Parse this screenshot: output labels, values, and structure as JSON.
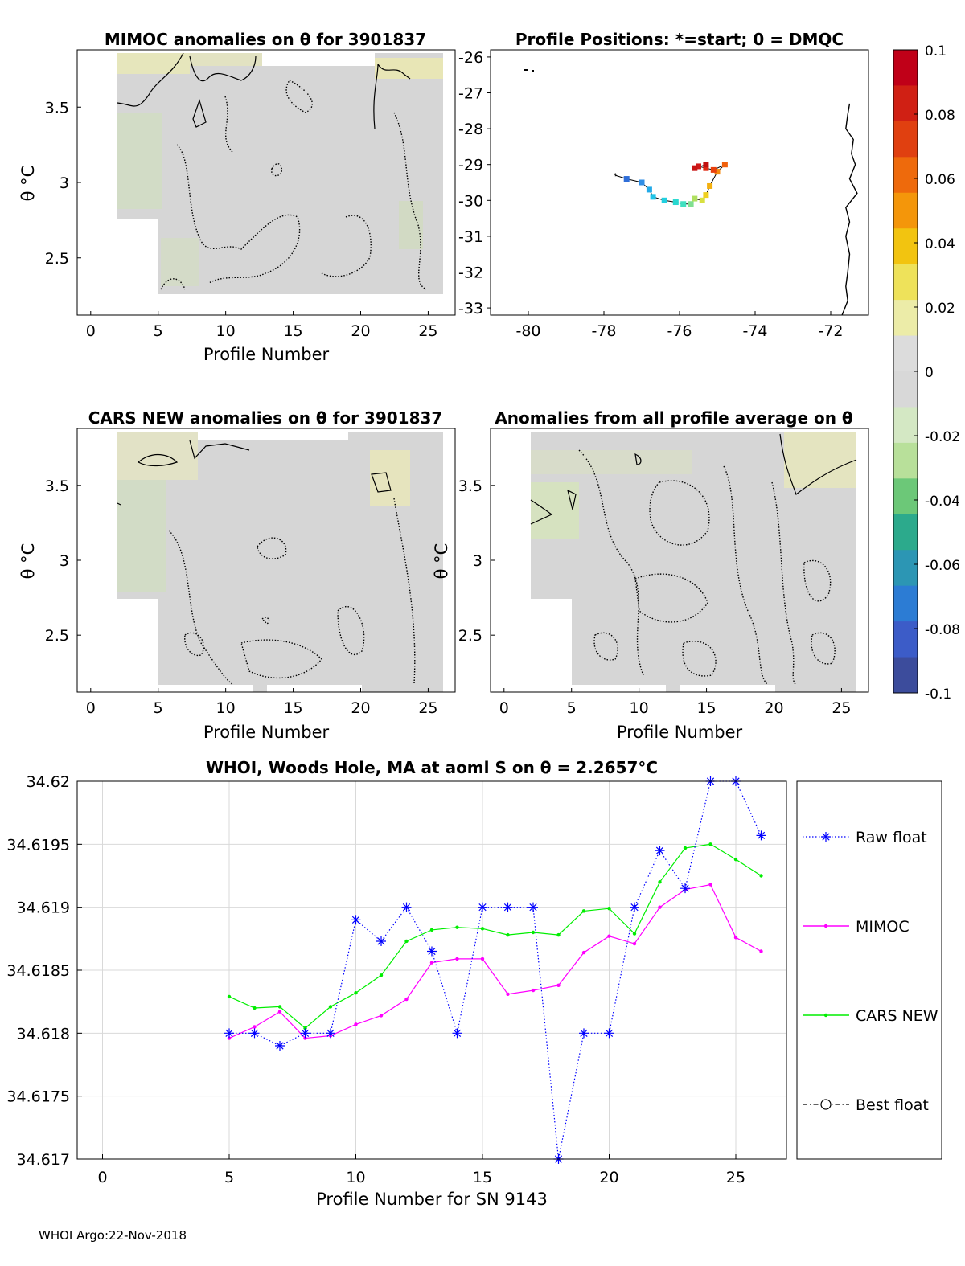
{
  "chart_data": [
    {
      "id": "mimoc",
      "type": "heatmap",
      "title": "MIMOC anomalies on θ  for 3901837",
      "xlabel": "Profile Number",
      "ylabel": "θ °C",
      "xlim": [
        -1,
        27
      ],
      "ylim": [
        2.12,
        3.88
      ],
      "xticks": [
        "0",
        "5",
        "10",
        "15",
        "20",
        "25"
      ],
      "yticks": [
        "2.5",
        "3",
        "3.5"
      ]
    },
    {
      "id": "positions",
      "type": "scatter",
      "title": "Profile Positions: *=start; 0 = DMQC",
      "xlim": [
        -81,
        -71
      ],
      "ylim": [
        -33.2,
        -25.8
      ],
      "xticks": [
        "-80",
        "-78",
        "-76",
        "-74",
        "-72"
      ],
      "yticks": [
        "-26",
        "-27",
        "-28",
        "-29",
        "-30",
        "-31",
        "-32",
        "-33"
      ],
      "track": {
        "lon": [
          -77.7,
          -77.4,
          -77.0,
          -76.8,
          -76.7,
          -76.4,
          -76.1,
          -75.9,
          -75.7,
          -75.6,
          -75.4,
          -75.3,
          -75.2,
          -75.0,
          -74.8,
          -75.1,
          -75.3,
          -75.5,
          -75.6,
          -75.3
        ],
        "lat": [
          -29.3,
          -29.4,
          -29.5,
          -29.7,
          -29.9,
          -30.0,
          -30.05,
          -30.1,
          -30.1,
          -29.95,
          -30.0,
          -29.85,
          -29.6,
          -29.2,
          -29.0,
          -29.15,
          -29.1,
          -29.05,
          -29.1,
          -29.0
        ]
      },
      "coast": {
        "lon": [
          -71.5,
          -71.55,
          -71.6,
          -71.4,
          -71.45,
          -71.35,
          -71.5,
          -71.3,
          -71.6,
          -71.5,
          -71.6,
          -71.5,
          -71.55,
          -71.6,
          -71.55,
          -71.7
        ],
        "lat": [
          -27.3,
          -27.6,
          -28.0,
          -28.3,
          -28.7,
          -29.0,
          -29.4,
          -29.8,
          -30.2,
          -30.6,
          -31.0,
          -31.5,
          -32.0,
          -32.4,
          -32.8,
          -33.2
        ]
      }
    },
    {
      "id": "cars",
      "type": "heatmap",
      "title": "CARS NEW anomalies on θ for 3901837",
      "xlabel": "Profile Number",
      "ylabel": "θ °C",
      "xlim": [
        -1,
        27
      ],
      "ylim": [
        2.12,
        3.88
      ],
      "xticks": [
        "0",
        "5",
        "10",
        "15",
        "20",
        "25"
      ],
      "yticks": [
        "2.5",
        "3",
        "3.5"
      ]
    },
    {
      "id": "avg",
      "type": "heatmap",
      "title": "Anomalies from all profile average on θ",
      "xlabel": "Profile Number",
      "ylabel": "θ °C",
      "xlim": [
        -1,
        27
      ],
      "ylim": [
        2.12,
        3.88
      ],
      "xticks": [
        "0",
        "5",
        "10",
        "15",
        "20",
        "25"
      ],
      "yticks": [
        "2.5",
        "3",
        "3.5"
      ]
    },
    {
      "id": "salinity",
      "type": "line",
      "title": "WHOI, Woods Hole, MA at aoml S on θ = 2.2657°C",
      "xlabel": "Profile Number for SN 9143",
      "xlim": [
        -1,
        27
      ],
      "ylim": [
        34.617,
        34.62
      ],
      "xticks": [
        "0",
        "5",
        "10",
        "15",
        "20",
        "25"
      ],
      "yticks": [
        "34.617",
        "34.6175",
        "34.618",
        "34.6185",
        "34.619",
        "34.6195",
        "34.62"
      ],
      "x": [
        5,
        6,
        7,
        8,
        9,
        10,
        11,
        12,
        13,
        14,
        15,
        16,
        17,
        18,
        19,
        20,
        21,
        22,
        23,
        24,
        25,
        26
      ],
      "series": [
        {
          "name": "Raw float",
          "color": "#0000ff",
          "values": [
            34.618,
            34.618,
            34.6179,
            34.618,
            34.618,
            34.6189,
            34.61873,
            34.619,
            34.61865,
            34.618,
            34.619,
            34.619,
            34.619,
            34.617,
            34.618,
            34.618,
            34.619,
            34.61945,
            34.61915,
            34.62,
            34.62,
            34.61957
          ]
        },
        {
          "name": "MIMOC",
          "color": "#ff00ff",
          "values": [
            34.61796,
            34.61805,
            34.61817,
            34.61796,
            34.61798,
            34.61807,
            34.61814,
            34.61827,
            34.61856,
            34.61859,
            34.61859,
            34.61831,
            34.61834,
            34.61838,
            34.61864,
            34.61877,
            34.61871,
            34.619,
            34.61914,
            34.61918,
            34.61876,
            34.61865
          ]
        },
        {
          "name": "CARS NEW",
          "color": "#00ee00",
          "values": [
            34.61829,
            34.6182,
            34.61821,
            34.61804,
            34.61821,
            34.61832,
            34.61846,
            34.61873,
            34.61882,
            34.61884,
            34.61883,
            34.61878,
            34.6188,
            34.61878,
            34.61897,
            34.61899,
            34.61879,
            34.6192,
            34.61947,
            34.6195,
            34.61938,
            34.61925
          ]
        }
      ],
      "legend": [
        "Raw float",
        "MIMOC",
        "CARS NEW",
        "Best float"
      ]
    }
  ],
  "colorbar": {
    "ticks": [
      "0.1",
      "0.08",
      "0.06",
      "0.04",
      "0.02",
      "0",
      "-0.02",
      "-0.04",
      "-0.06",
      "-0.08",
      "-0.1"
    ],
    "colors": [
      "#c00018",
      "#d02014",
      "#e04010",
      "#ee6a0c",
      "#f4960a",
      "#f2c410",
      "#eee25a",
      "#ececa8",
      "#dcdcdc",
      "#d8d8d8",
      "#d4e8c4",
      "#b8e09a",
      "#6cc878",
      "#2caa8c",
      "#2c96b4",
      "#2c7cd4",
      "#3c5cc8",
      "#3c4c9c"
    ]
  },
  "footer": "WHOI Argo:22-Nov-2018"
}
